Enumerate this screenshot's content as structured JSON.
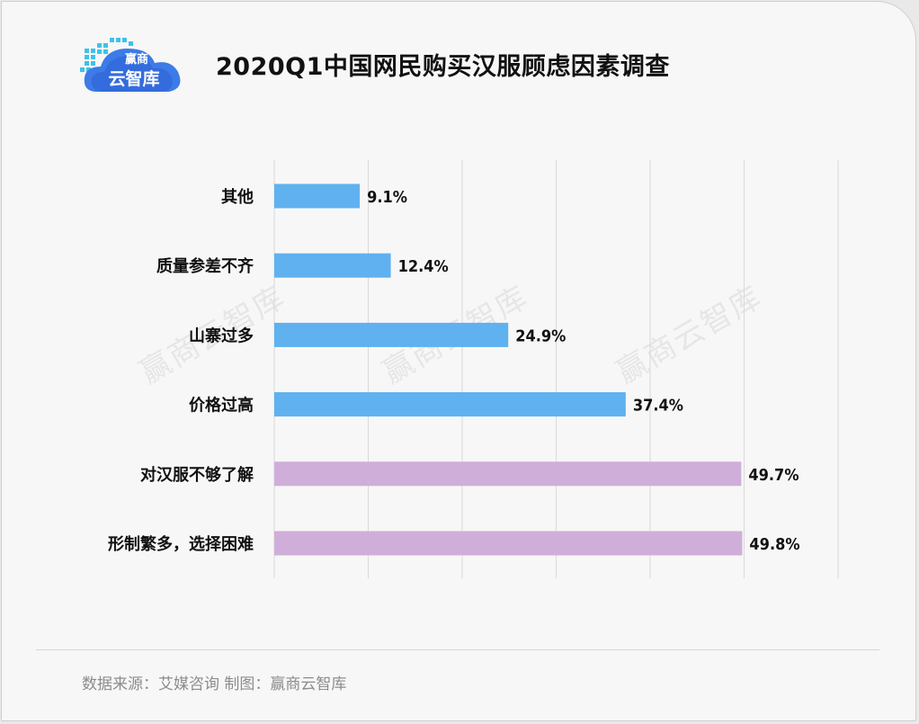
{
  "logo": {
    "line1": "赢商",
    "line2": "云智库"
  },
  "watermark_text": "赢商云智库",
  "footer": "数据来源：艾媒咨询  制图：赢商云智库",
  "colors": {
    "blue_bar": "#5fb1ef",
    "purple_bar": "#cfaed9",
    "grid": "#d9d9d9"
  },
  "chart_data": {
    "type": "bar",
    "orientation": "horizontal",
    "title": "2020Q1中国网民购买汉服顾虑因素调查",
    "xlim": [
      0,
      60
    ],
    "grid": true,
    "value_suffix": "%",
    "categories": [
      "其他",
      "质量参差不齐",
      "山寨过多",
      "价格过高",
      "对汉服不够了解",
      "形制繁多，选择困难"
    ],
    "values": [
      9.1,
      12.4,
      24.9,
      37.4,
      49.7,
      49.8
    ],
    "bar_colors": [
      "#5fb1ef",
      "#5fb1ef",
      "#5fb1ef",
      "#5fb1ef",
      "#cfaed9",
      "#cfaed9"
    ]
  }
}
